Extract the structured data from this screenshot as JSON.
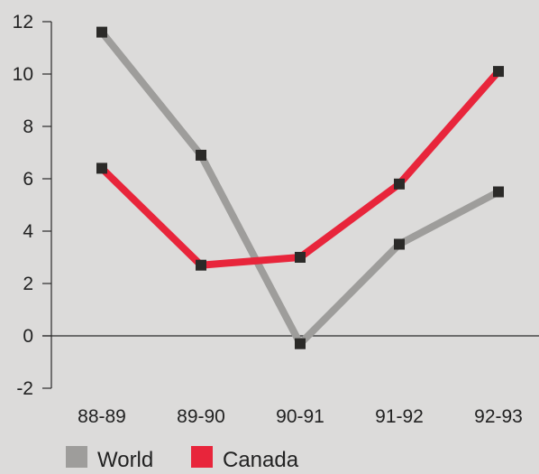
{
  "chart_data": {
    "type": "line",
    "categories": [
      "88-89",
      "89-90",
      "90-91",
      "91-92",
      "92-93"
    ],
    "series": [
      {
        "name": "World",
        "values": [
          11.6,
          6.9,
          -0.3,
          3.5,
          5.5
        ],
        "color": "#9e9d9b"
      },
      {
        "name": "Canada",
        "values": [
          6.4,
          2.7,
          3.0,
          5.8,
          10.1
        ],
        "color": "#e8253b"
      }
    ],
    "y_ticks": [
      "12",
      "10",
      "8",
      "6",
      "4",
      "2",
      "0",
      "-2"
    ],
    "ylim": [
      -2,
      12
    ],
    "title": "",
    "xlabel": "",
    "ylabel": "",
    "legend_position": "bottom-left",
    "grid": false,
    "marker_color": "#2b2a28"
  }
}
